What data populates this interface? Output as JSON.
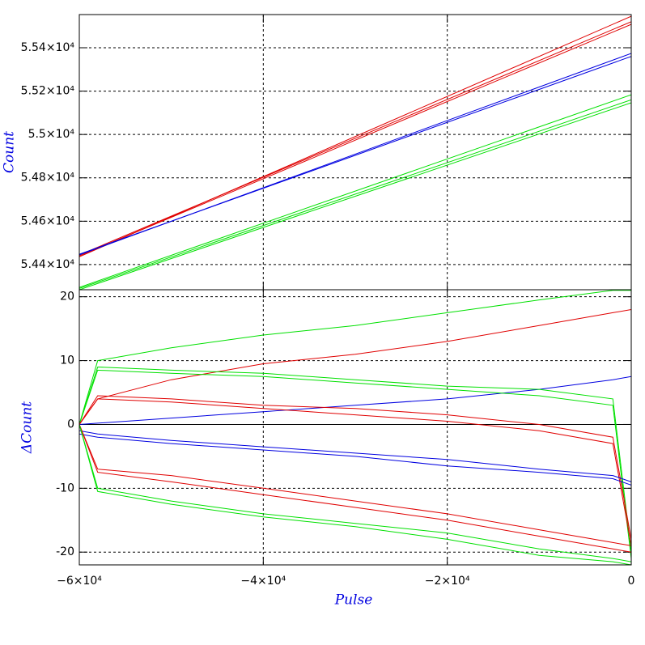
{
  "chart_data": [
    {
      "type": "line",
      "ylabel": "Count",
      "x": [
        -60000,
        0
      ],
      "xlim": [
        -60000,
        0
      ],
      "ylim": [
        54284,
        55553
      ],
      "yticks": [
        {
          "value": 54400,
          "label": "5.44×10⁴"
        },
        {
          "value": 54600,
          "label": "5.46×10⁴"
        },
        {
          "value": 54800,
          "label": "5.48×10⁴"
        },
        {
          "value": 55000,
          "label": "5.5×10⁴"
        },
        {
          "value": 55200,
          "label": "5.52×10⁴"
        },
        {
          "value": 55400,
          "label": "5.54×10⁴"
        }
      ],
      "grid": true,
      "series": [
        {
          "color": "#e00000",
          "values": [
            54440,
            55508
          ]
        },
        {
          "color": "#e00000",
          "values": [
            54436,
            55545
          ]
        },
        {
          "color": "#e00000",
          "values": [
            54444,
            55520
          ]
        },
        {
          "color": "#0000e0",
          "values": [
            54445,
            55374
          ]
        },
        {
          "color": "#0000e0",
          "values": [
            54448,
            55360
          ]
        },
        {
          "color": "#00e000",
          "values": [
            54295,
            55183
          ]
        },
        {
          "color": "#00e000",
          "values": [
            54284,
            55146
          ]
        },
        {
          "color": "#00e000",
          "values": [
            54290,
            55160
          ]
        }
      ]
    },
    {
      "type": "line",
      "xlabel": "Pulse",
      "ylabel": "ΔCount",
      "x": [
        -60000,
        -58000,
        -50000,
        -40000,
        -30000,
        -20000,
        -10000,
        -2000,
        0
      ],
      "xlim": [
        -60000,
        0
      ],
      "xticks": [
        {
          "value": -60000,
          "label": "−6×10⁴"
        },
        {
          "value": -40000,
          "label": "−4×10⁴"
        },
        {
          "value": -20000,
          "label": "−2×10⁴"
        },
        0
      ],
      "ylim": [
        -22,
        21.1
      ],
      "yticks": [
        20,
        10,
        0,
        -10,
        -20
      ],
      "grid": true,
      "series": [
        {
          "color": "#00e000",
          "values": [
            0,
            10,
            12,
            14,
            15.5,
            17.5,
            19.5,
            21,
            21
          ]
        },
        {
          "color": "#e00000",
          "values": [
            0,
            4,
            7,
            9.5,
            11,
            13,
            15.5,
            17.5,
            18
          ]
        },
        {
          "color": "#0000e0",
          "values": [
            0,
            0.2,
            1,
            2,
            3,
            4,
            5.5,
            7,
            7.5
          ]
        },
        {
          "color": "#00e000",
          "values": [
            0,
            9,
            8.5,
            8,
            7,
            6,
            5.5,
            4,
            -20
          ]
        },
        {
          "color": "#00e000",
          "values": [
            0,
            8.5,
            8,
            7.5,
            6.5,
            5.5,
            4.5,
            3,
            -21
          ]
        },
        {
          "color": "#e00000",
          "values": [
            0,
            4.5,
            4,
            3,
            2.5,
            1.5,
            0,
            -2,
            -18
          ]
        },
        {
          "color": "#e00000",
          "values": [
            0,
            4,
            3.5,
            2.5,
            1.5,
            0.5,
            -1,
            -3,
            -19
          ]
        },
        {
          "color": "#0000e0",
          "values": [
            -1,
            -1.5,
            -2.5,
            -3.5,
            -4.5,
            -5.5,
            -7,
            -8,
            -9
          ]
        },
        {
          "color": "#0000e0",
          "values": [
            -1.5,
            -2,
            -3,
            -4,
            -5,
            -6.5,
            -7.5,
            -8.5,
            -9.5
          ]
        },
        {
          "color": "#e00000",
          "values": [
            0,
            -7,
            -8,
            -10,
            -12,
            -14,
            -16.5,
            -18.5,
            -19
          ]
        },
        {
          "color": "#e00000",
          "values": [
            0,
            -7.5,
            -9,
            -11,
            -13,
            -15,
            -17.5,
            -19.5,
            -20
          ]
        },
        {
          "color": "#00e000",
          "values": [
            0,
            -10,
            -12,
            -14,
            -15.5,
            -17,
            -19.5,
            -21,
            -21.5
          ]
        },
        {
          "color": "#00e000",
          "values": [
            0,
            -10.5,
            -12.5,
            -14.5,
            -16,
            -18,
            -20.5,
            -21.5,
            -22
          ]
        }
      ]
    }
  ]
}
